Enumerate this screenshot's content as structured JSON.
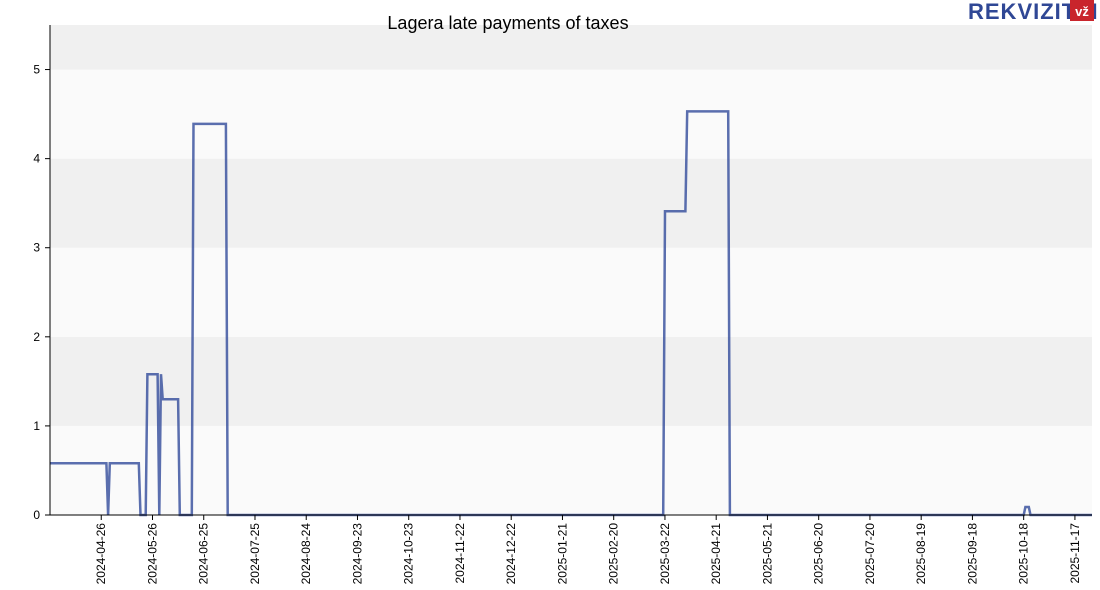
{
  "brand": {
    "name": "REKVIZITAI",
    "badge": "vž",
    "color": "#2f4795",
    "badge_color": "#c9252c"
  },
  "chart_data": {
    "type": "line",
    "title": "Lagera late payments of taxes",
    "xlabel": "",
    "ylabel": "",
    "ylim": [
      0,
      5.5
    ],
    "xlim": [
      "2024-03-27",
      "2025-11-27"
    ],
    "yticks": [
      0,
      1,
      2,
      3,
      4,
      5
    ],
    "xticks": [
      "2024-04-26",
      "2024-05-26",
      "2024-06-25",
      "2024-07-25",
      "2024-08-24",
      "2024-09-23",
      "2024-10-23",
      "2024-11-22",
      "2024-12-22",
      "2025-01-21",
      "2025-02-20",
      "2025-03-22",
      "2025-04-21",
      "2025-05-21",
      "2025-06-20",
      "2025-07-20",
      "2025-08-19",
      "2025-09-18",
      "2025-10-18",
      "2025-11-17"
    ],
    "grid": "horizontal bands",
    "line_color": "#3d55a0",
    "band_colors": [
      "#f0f0f0",
      "#fafafa"
    ],
    "series": [
      {
        "points": [
          [
            "2024-03-27",
            0.58
          ],
          [
            "2024-04-29",
            0.58
          ],
          [
            "2024-04-30",
            0.0
          ],
          [
            "2024-05-01",
            0.58
          ],
          [
            "2024-05-18",
            0.58
          ],
          [
            "2024-05-19",
            0.0
          ],
          [
            "2024-05-22",
            0.0
          ],
          [
            "2024-05-23",
            1.58
          ],
          [
            "2024-05-29",
            1.58
          ],
          [
            "2024-05-30",
            0.0
          ],
          [
            "2024-05-31",
            1.58
          ],
          [
            "2024-06-01",
            1.3
          ],
          [
            "2024-06-10",
            1.3
          ],
          [
            "2024-06-11",
            0.0
          ],
          [
            "2024-06-18",
            0.0
          ],
          [
            "2024-06-19",
            4.39
          ],
          [
            "2024-07-08",
            4.39
          ],
          [
            "2024-07-09",
            0.0
          ],
          [
            "2025-03-21",
            0.0
          ],
          [
            "2025-03-22",
            3.41
          ],
          [
            "2025-04-03",
            3.41
          ],
          [
            "2025-04-04",
            4.53
          ],
          [
            "2025-04-28",
            4.53
          ],
          [
            "2025-04-29",
            0.0
          ],
          [
            "2025-10-18",
            0.0
          ],
          [
            "2025-10-19",
            0.09
          ],
          [
            "2025-10-21",
            0.09
          ],
          [
            "2025-10-22",
            0.0
          ],
          [
            "2025-11-27",
            0.0
          ]
        ]
      }
    ]
  }
}
